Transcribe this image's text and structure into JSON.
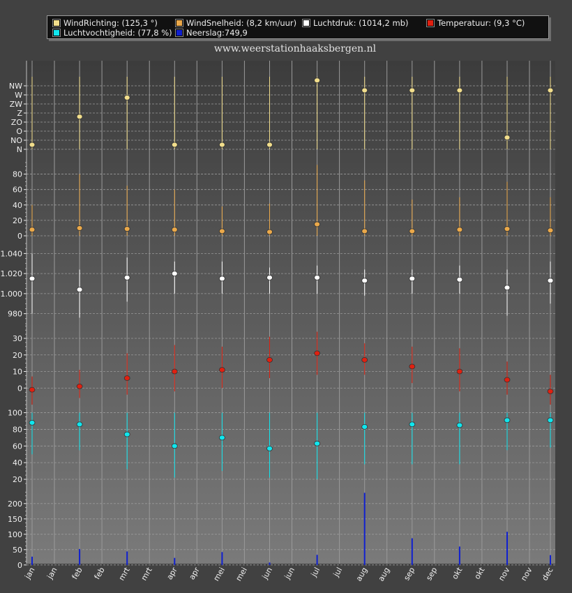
{
  "legend": [
    {
      "label": "WindRichting: (125,3 °)",
      "color": "#f2de8c"
    },
    {
      "label": "WindSnelheid: (8,2 km/uur)",
      "color": "#eba94a"
    },
    {
      "label": "Luchtdruk: (1014,2 mb)",
      "color": "#ffffff"
    },
    {
      "label": "Temperatuur: (9,3 °C)",
      "color": "#e02010"
    },
    {
      "label": "Luchtvochtigheid: (77,8 %)",
      "color": "#10e6ee"
    },
    {
      "label": "Neerslag:749,9",
      "color": "#1020d0"
    }
  ],
  "site_title": "www.weerstationhaaksbergen.nl",
  "colors": {
    "plot_bg_top": "#3c3c3c",
    "plot_bg_bottom": "#7a7a7a",
    "grid": "#9a9a9a",
    "axis_text": "#f0f0f0"
  },
  "chart_data": {
    "type": "composite",
    "x_tick_labels": [
      "jan",
      "jan",
      "feb",
      "feb",
      "mrt",
      "mrt",
      "apr",
      "apr",
      "mei",
      "mei",
      "jun",
      "jun",
      "jul",
      "jul",
      "aug",
      "aug",
      "sep",
      "sep",
      "okt",
      "okt",
      "nov",
      "nov",
      "dec"
    ],
    "months": [
      "jan",
      "feb",
      "mrt",
      "apr",
      "mei",
      "jun",
      "jul",
      "aug",
      "sep",
      "okt",
      "nov",
      "dec"
    ],
    "panels": [
      {
        "name": "WindRichting",
        "type": "scatter-range",
        "color": "#f2de8c",
        "marker": "circle",
        "tick_labels": [
          "N",
          "NO",
          "O",
          "ZO",
          "Z",
          "ZW",
          "W",
          "NW"
        ],
        "ylim": [
          0,
          8
        ],
        "values": [
          0.5,
          3.6,
          5.7,
          0.5,
          0.5,
          0.5,
          7.6,
          6.5,
          6.5,
          6.5,
          1.3,
          6.5
        ],
        "low": [
          0,
          0,
          0,
          0,
          0,
          0,
          0,
          0,
          0,
          0,
          0,
          0
        ],
        "high": [
          8,
          8,
          8,
          8,
          8,
          8,
          8,
          8,
          8,
          8,
          8,
          8
        ]
      },
      {
        "name": "WindSnelheid",
        "type": "scatter-range",
        "color": "#eba94a",
        "marker": "circle",
        "yticks": [
          0,
          20,
          40,
          60,
          80
        ],
        "ylim": [
          0,
          95
        ],
        "values": [
          8,
          10,
          9,
          8,
          6,
          5,
          15,
          6,
          6,
          8,
          9,
          7
        ],
        "low": [
          0,
          0,
          0,
          0,
          0,
          0,
          0,
          0,
          0,
          0,
          0,
          0
        ],
        "high": [
          40,
          80,
          65,
          60,
          38,
          42,
          92,
          72,
          47,
          50,
          70,
          50
        ]
      },
      {
        "name": "Luchtdruk",
        "type": "scatter-range",
        "color": "#ffffff",
        "marker": "circle",
        "yticks": [
          980,
          1000,
          1020,
          1040
        ],
        "tick_labels": [
          "980",
          "1.000",
          "1.020",
          "1.040"
        ],
        "ylim": [
          970,
          1050
        ],
        "values": [
          1015,
          1004,
          1016,
          1020,
          1015,
          1016,
          1016,
          1013,
          1015,
          1014,
          1006,
          1013
        ],
        "low": [
          980,
          976,
          992,
          1000,
          1000,
          1000,
          1000,
          998,
          1000,
          1000,
          978,
          990
        ],
        "high": [
          1040,
          1024,
          1036,
          1032,
          1032,
          1026,
          1028,
          1024,
          1024,
          1028,
          1024,
          1032
        ]
      },
      {
        "name": "Temperatuur",
        "type": "scatter-range",
        "color": "#e02010",
        "marker": "circle",
        "yticks": [
          0,
          10,
          20,
          30
        ],
        "ylim": [
          -10,
          38
        ],
        "values": [
          -1,
          1,
          6,
          10,
          11,
          17,
          21,
          17,
          13,
          10,
          5,
          -2
        ],
        "low": [
          -10,
          -6,
          -4,
          -2,
          0,
          6,
          8,
          8,
          3,
          -2,
          -4,
          -10
        ],
        "high": [
          7,
          11,
          21,
          26,
          25,
          31,
          34,
          27,
          25,
          24,
          16,
          8
        ]
      },
      {
        "name": "Luchtvochtigheid",
        "type": "scatter-range",
        "color": "#10e6ee",
        "marker": "circle",
        "yticks": [
          20,
          40,
          60,
          80,
          100
        ],
        "ylim": [
          15,
          108
        ],
        "values": [
          88,
          86,
          74,
          60,
          70,
          57,
          63,
          83,
          86,
          85,
          91,
          91
        ],
        "low": [
          50,
          55,
          32,
          22,
          30,
          22,
          20,
          38,
          38,
          38,
          55,
          58
        ],
        "high": [
          100,
          100,
          100,
          100,
          100,
          100,
          100,
          100,
          100,
          100,
          100,
          100
        ]
      },
      {
        "name": "Neerslag",
        "type": "bar",
        "color": "#1020d0",
        "yticks": [
          0,
          50,
          100,
          150,
          200
        ],
        "ylim": [
          -5,
          245
        ],
        "values": [
          27,
          52,
          44,
          23,
          42,
          8,
          33,
          235,
          87,
          60,
          108,
          32
        ]
      }
    ]
  }
}
